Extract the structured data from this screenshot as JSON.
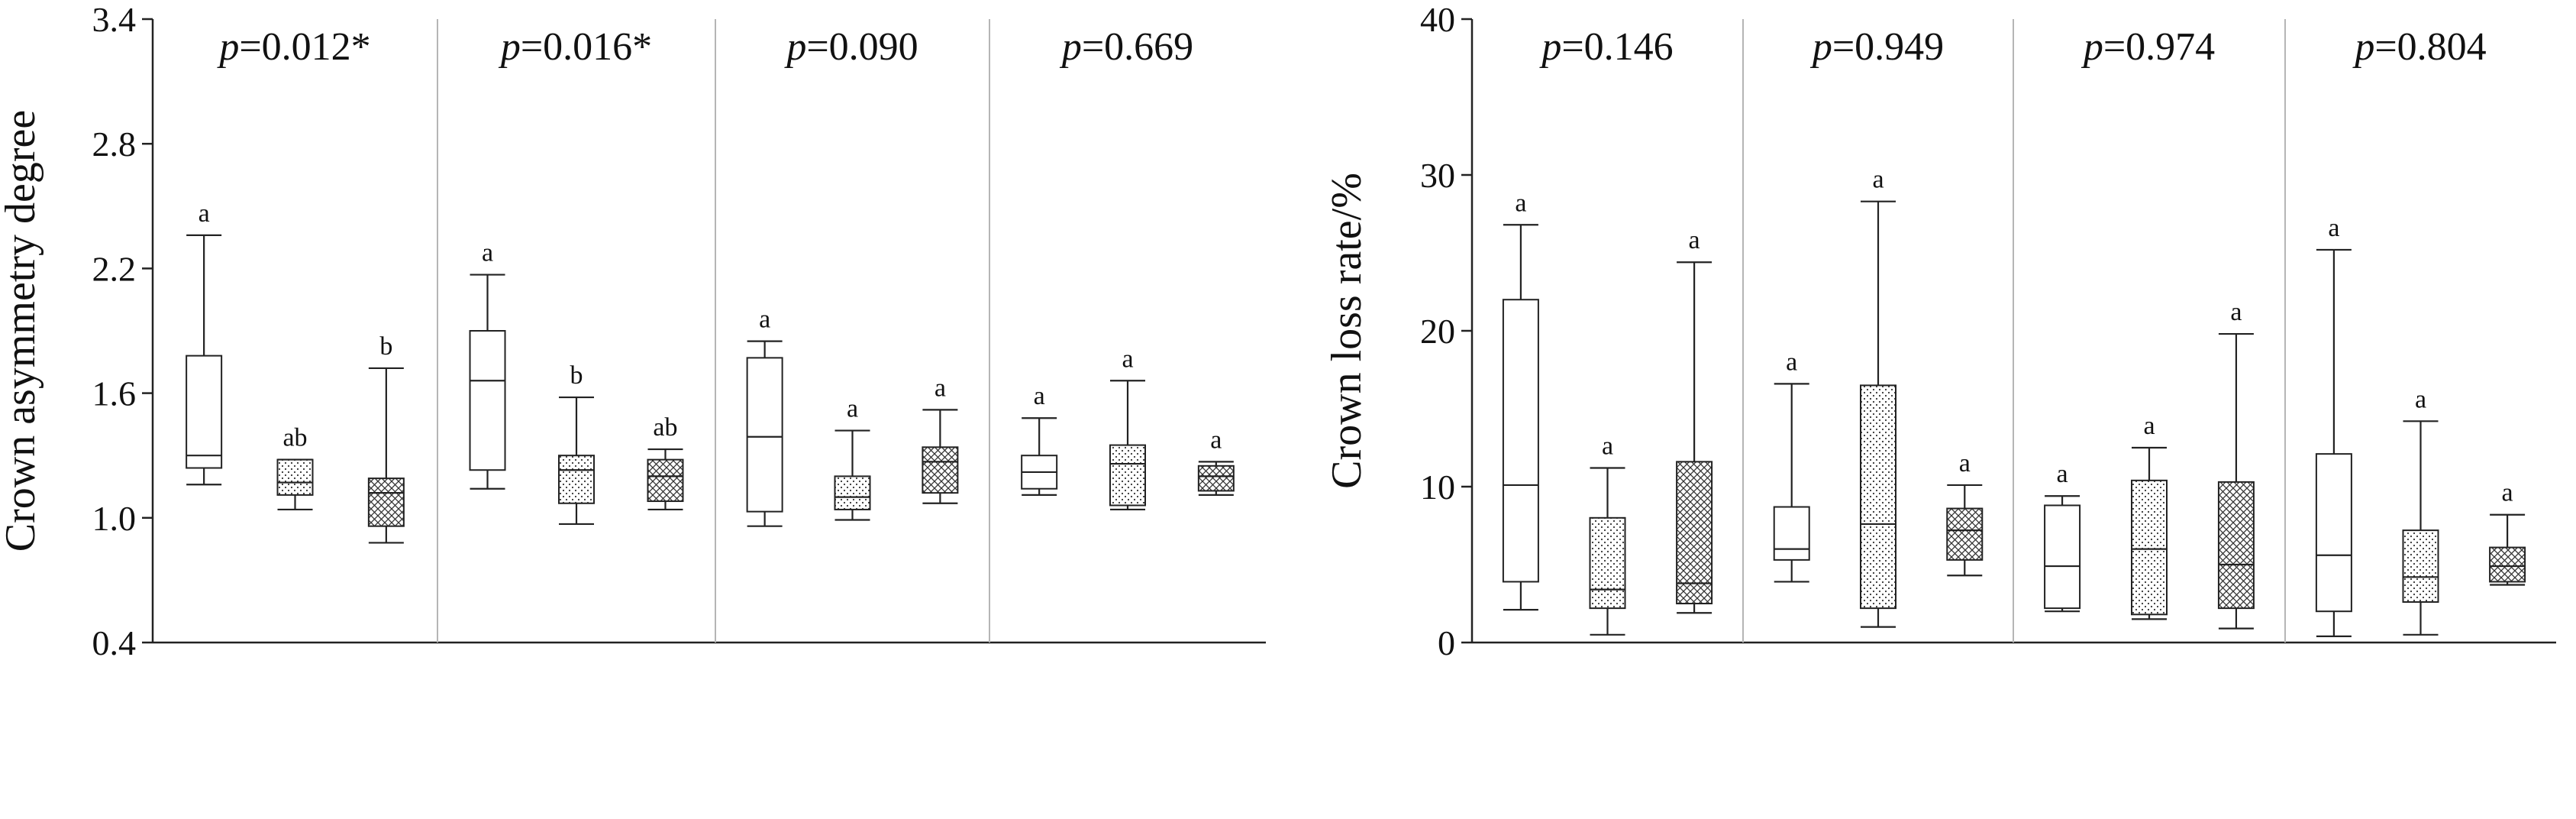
{
  "chart_data": [
    {
      "type": "box",
      "ylabel": "Crown asymmetry degree",
      "ylim": [
        0.4,
        3.4
      ],
      "yticks": [
        0.4,
        1.0,
        1.6,
        2.2,
        2.8,
        3.4
      ],
      "ytick_labels": [
        "0.4",
        "1.0",
        "1.6",
        "2.2",
        "2.8",
        "3.4"
      ],
      "groups": [
        {
          "p_prefix": "p",
          "p_value": "=0.012*",
          "boxes": [
            {
              "pattern": "plain",
              "min": 1.16,
              "q1": 1.24,
              "median": 1.3,
              "q3": 1.78,
              "max": 2.36,
              "letter": "a"
            },
            {
              "pattern": "dots",
              "min": 1.04,
              "q1": 1.11,
              "median": 1.17,
              "q3": 1.28,
              "max": 1.28,
              "letter": "ab"
            },
            {
              "pattern": "cross",
              "min": 0.88,
              "q1": 0.96,
              "median": 1.12,
              "q3": 1.19,
              "max": 1.72,
              "letter": "b"
            }
          ]
        },
        {
          "p_prefix": "p",
          "p_value": "=0.016*",
          "boxes": [
            {
              "pattern": "plain",
              "min": 1.14,
              "q1": 1.23,
              "median": 1.66,
              "q3": 1.9,
              "max": 2.17,
              "letter": "a"
            },
            {
              "pattern": "dots",
              "min": 0.97,
              "q1": 1.07,
              "median": 1.23,
              "q3": 1.3,
              "max": 1.58,
              "letter": "b"
            },
            {
              "pattern": "cross",
              "min": 1.04,
              "q1": 1.08,
              "median": 1.2,
              "q3": 1.28,
              "max": 1.33,
              "letter": "ab"
            }
          ]
        },
        {
          "p_prefix": "p",
          "p_value": "=0.090",
          "boxes": [
            {
              "pattern": "plain",
              "min": 0.96,
              "q1": 1.03,
              "median": 1.39,
              "q3": 1.77,
              "max": 1.85,
              "letter": "a"
            },
            {
              "pattern": "dots",
              "min": 0.99,
              "q1": 1.04,
              "median": 1.1,
              "q3": 1.2,
              "max": 1.42,
              "letter": "a"
            },
            {
              "pattern": "cross",
              "min": 1.07,
              "q1": 1.12,
              "median": 1.27,
              "q3": 1.34,
              "max": 1.52,
              "letter": "a"
            }
          ]
        },
        {
          "p_prefix": "p",
          "p_value": "=0.669",
          "boxes": [
            {
              "pattern": "plain",
              "min": 1.11,
              "q1": 1.14,
              "median": 1.22,
              "q3": 1.3,
              "max": 1.48,
              "letter": "a"
            },
            {
              "pattern": "dots",
              "min": 1.04,
              "q1": 1.06,
              "median": 1.26,
              "q3": 1.35,
              "max": 1.66,
              "letter": "a"
            },
            {
              "pattern": "cross",
              "min": 1.11,
              "q1": 1.13,
              "median": 1.2,
              "q3": 1.25,
              "max": 1.27,
              "letter": "a"
            }
          ]
        }
      ]
    },
    {
      "type": "box",
      "ylabel": "Crown loss rate/%",
      "ylim": [
        0,
        40
      ],
      "yticks": [
        0,
        10,
        20,
        30,
        40
      ],
      "ytick_labels": [
        "0",
        "10",
        "20",
        "30",
        "40"
      ],
      "groups": [
        {
          "p_prefix": "p",
          "p_value": "=0.146",
          "boxes": [
            {
              "pattern": "plain",
              "min": 2.1,
              "q1": 3.9,
              "median": 10.1,
              "q3": 22.0,
              "max": 26.8,
              "letter": "a"
            },
            {
              "pattern": "dots",
              "min": 0.5,
              "q1": 2.2,
              "median": 3.4,
              "q3": 8.0,
              "max": 11.2,
              "letter": "a"
            },
            {
              "pattern": "cross",
              "min": 1.9,
              "q1": 2.5,
              "median": 3.8,
              "q3": 11.6,
              "max": 24.4,
              "letter": "a"
            }
          ]
        },
        {
          "p_prefix": "p",
          "p_value": "=0.949",
          "boxes": [
            {
              "pattern": "plain",
              "min": 3.9,
              "q1": 5.3,
              "median": 6.0,
              "q3": 8.7,
              "max": 16.6,
              "letter": "a"
            },
            {
              "pattern": "dots",
              "min": 1.0,
              "q1": 2.2,
              "median": 7.6,
              "q3": 16.5,
              "max": 28.3,
              "letter": "a"
            },
            {
              "pattern": "cross",
              "min": 4.3,
              "q1": 5.3,
              "median": 7.2,
              "q3": 8.6,
              "max": 10.1,
              "letter": "a"
            }
          ]
        },
        {
          "p_prefix": "p",
          "p_value": "=0.974",
          "boxes": [
            {
              "pattern": "plain",
              "min": 2.0,
              "q1": 2.2,
              "median": 4.9,
              "q3": 8.8,
              "max": 9.4,
              "letter": "a"
            },
            {
              "pattern": "dots",
              "min": 1.5,
              "q1": 1.8,
              "median": 6.0,
              "q3": 10.4,
              "max": 12.5,
              "letter": "a"
            },
            {
              "pattern": "cross",
              "min": 0.9,
              "q1": 2.2,
              "median": 5.0,
              "q3": 10.3,
              "max": 19.8,
              "letter": "a"
            }
          ]
        },
        {
          "p_prefix": "p",
          "p_value": "=0.804",
          "boxes": [
            {
              "pattern": "plain",
              "min": 0.4,
              "q1": 2.0,
              "median": 5.6,
              "q3": 12.1,
              "max": 25.2,
              "letter": "a"
            },
            {
              "pattern": "dots",
              "min": 0.5,
              "q1": 2.6,
              "median": 4.2,
              "q3": 7.2,
              "max": 14.2,
              "letter": "a"
            },
            {
              "pattern": "cross",
              "min": 3.7,
              "q1": 3.9,
              "median": 4.9,
              "q3": 6.1,
              "max": 8.2,
              "letter": "a"
            }
          ]
        }
      ]
    }
  ]
}
